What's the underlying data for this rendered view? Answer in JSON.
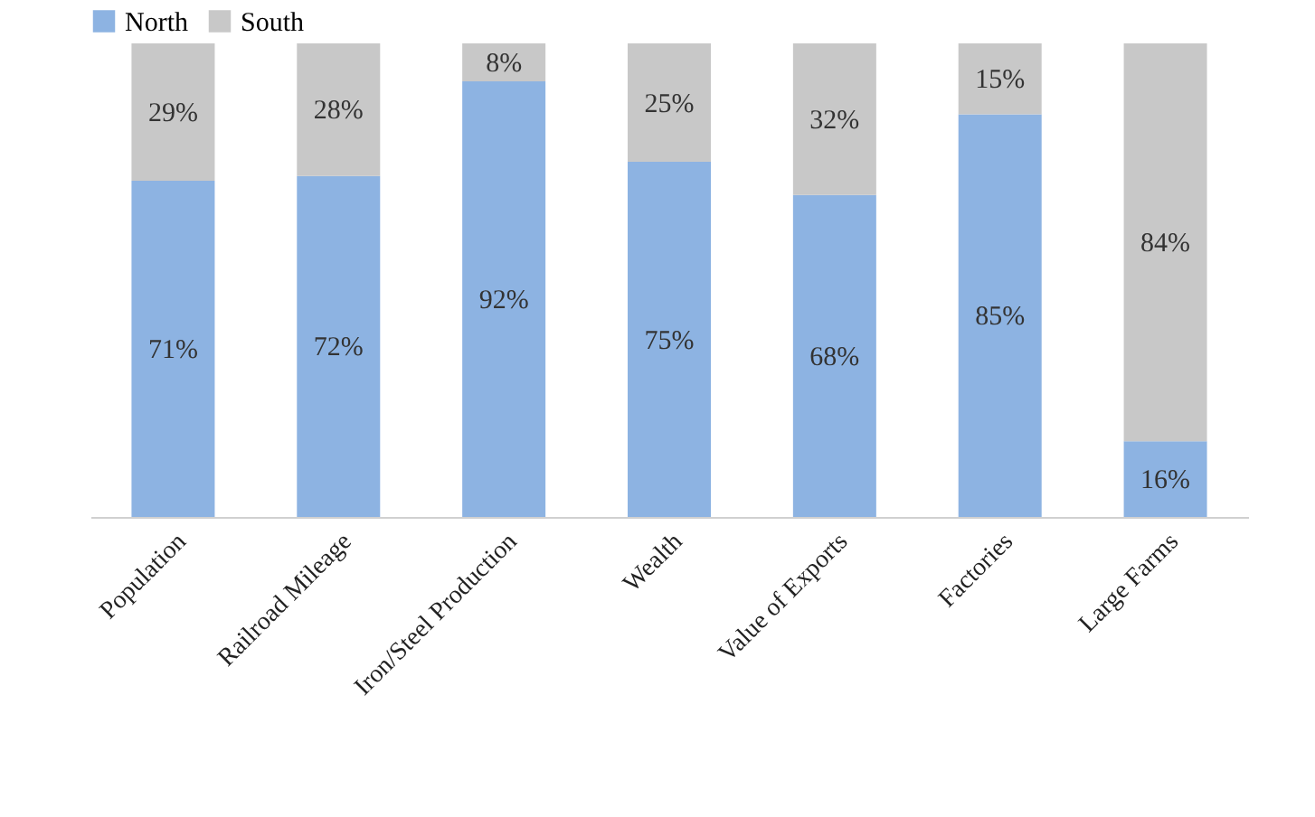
{
  "chart_data": {
    "type": "bar",
    "stacked": true,
    "categories": [
      "Population",
      "Railroad Mileage",
      "Iron/Steel Production",
      "Wealth",
      "Value of Exports",
      "Factories",
      "Large Farms"
    ],
    "series": [
      {
        "name": "North",
        "color": "#8db3e2",
        "values": [
          71,
          72,
          92,
          75,
          68,
          85,
          16
        ],
        "value_labels": [
          "71%",
          "72%",
          "92%",
          "75%",
          "68%",
          "85%",
          "16%"
        ]
      },
      {
        "name": "South",
        "color": "#c8c8c8",
        "values": [
          29,
          28,
          8,
          25,
          32,
          15,
          84
        ],
        "value_labels": [
          "29%",
          "28%",
          "8%",
          "25%",
          "32%",
          "15%",
          "84%"
        ]
      }
    ],
    "ylim": [
      0,
      100
    ],
    "legend": "top",
    "grid": false
  }
}
